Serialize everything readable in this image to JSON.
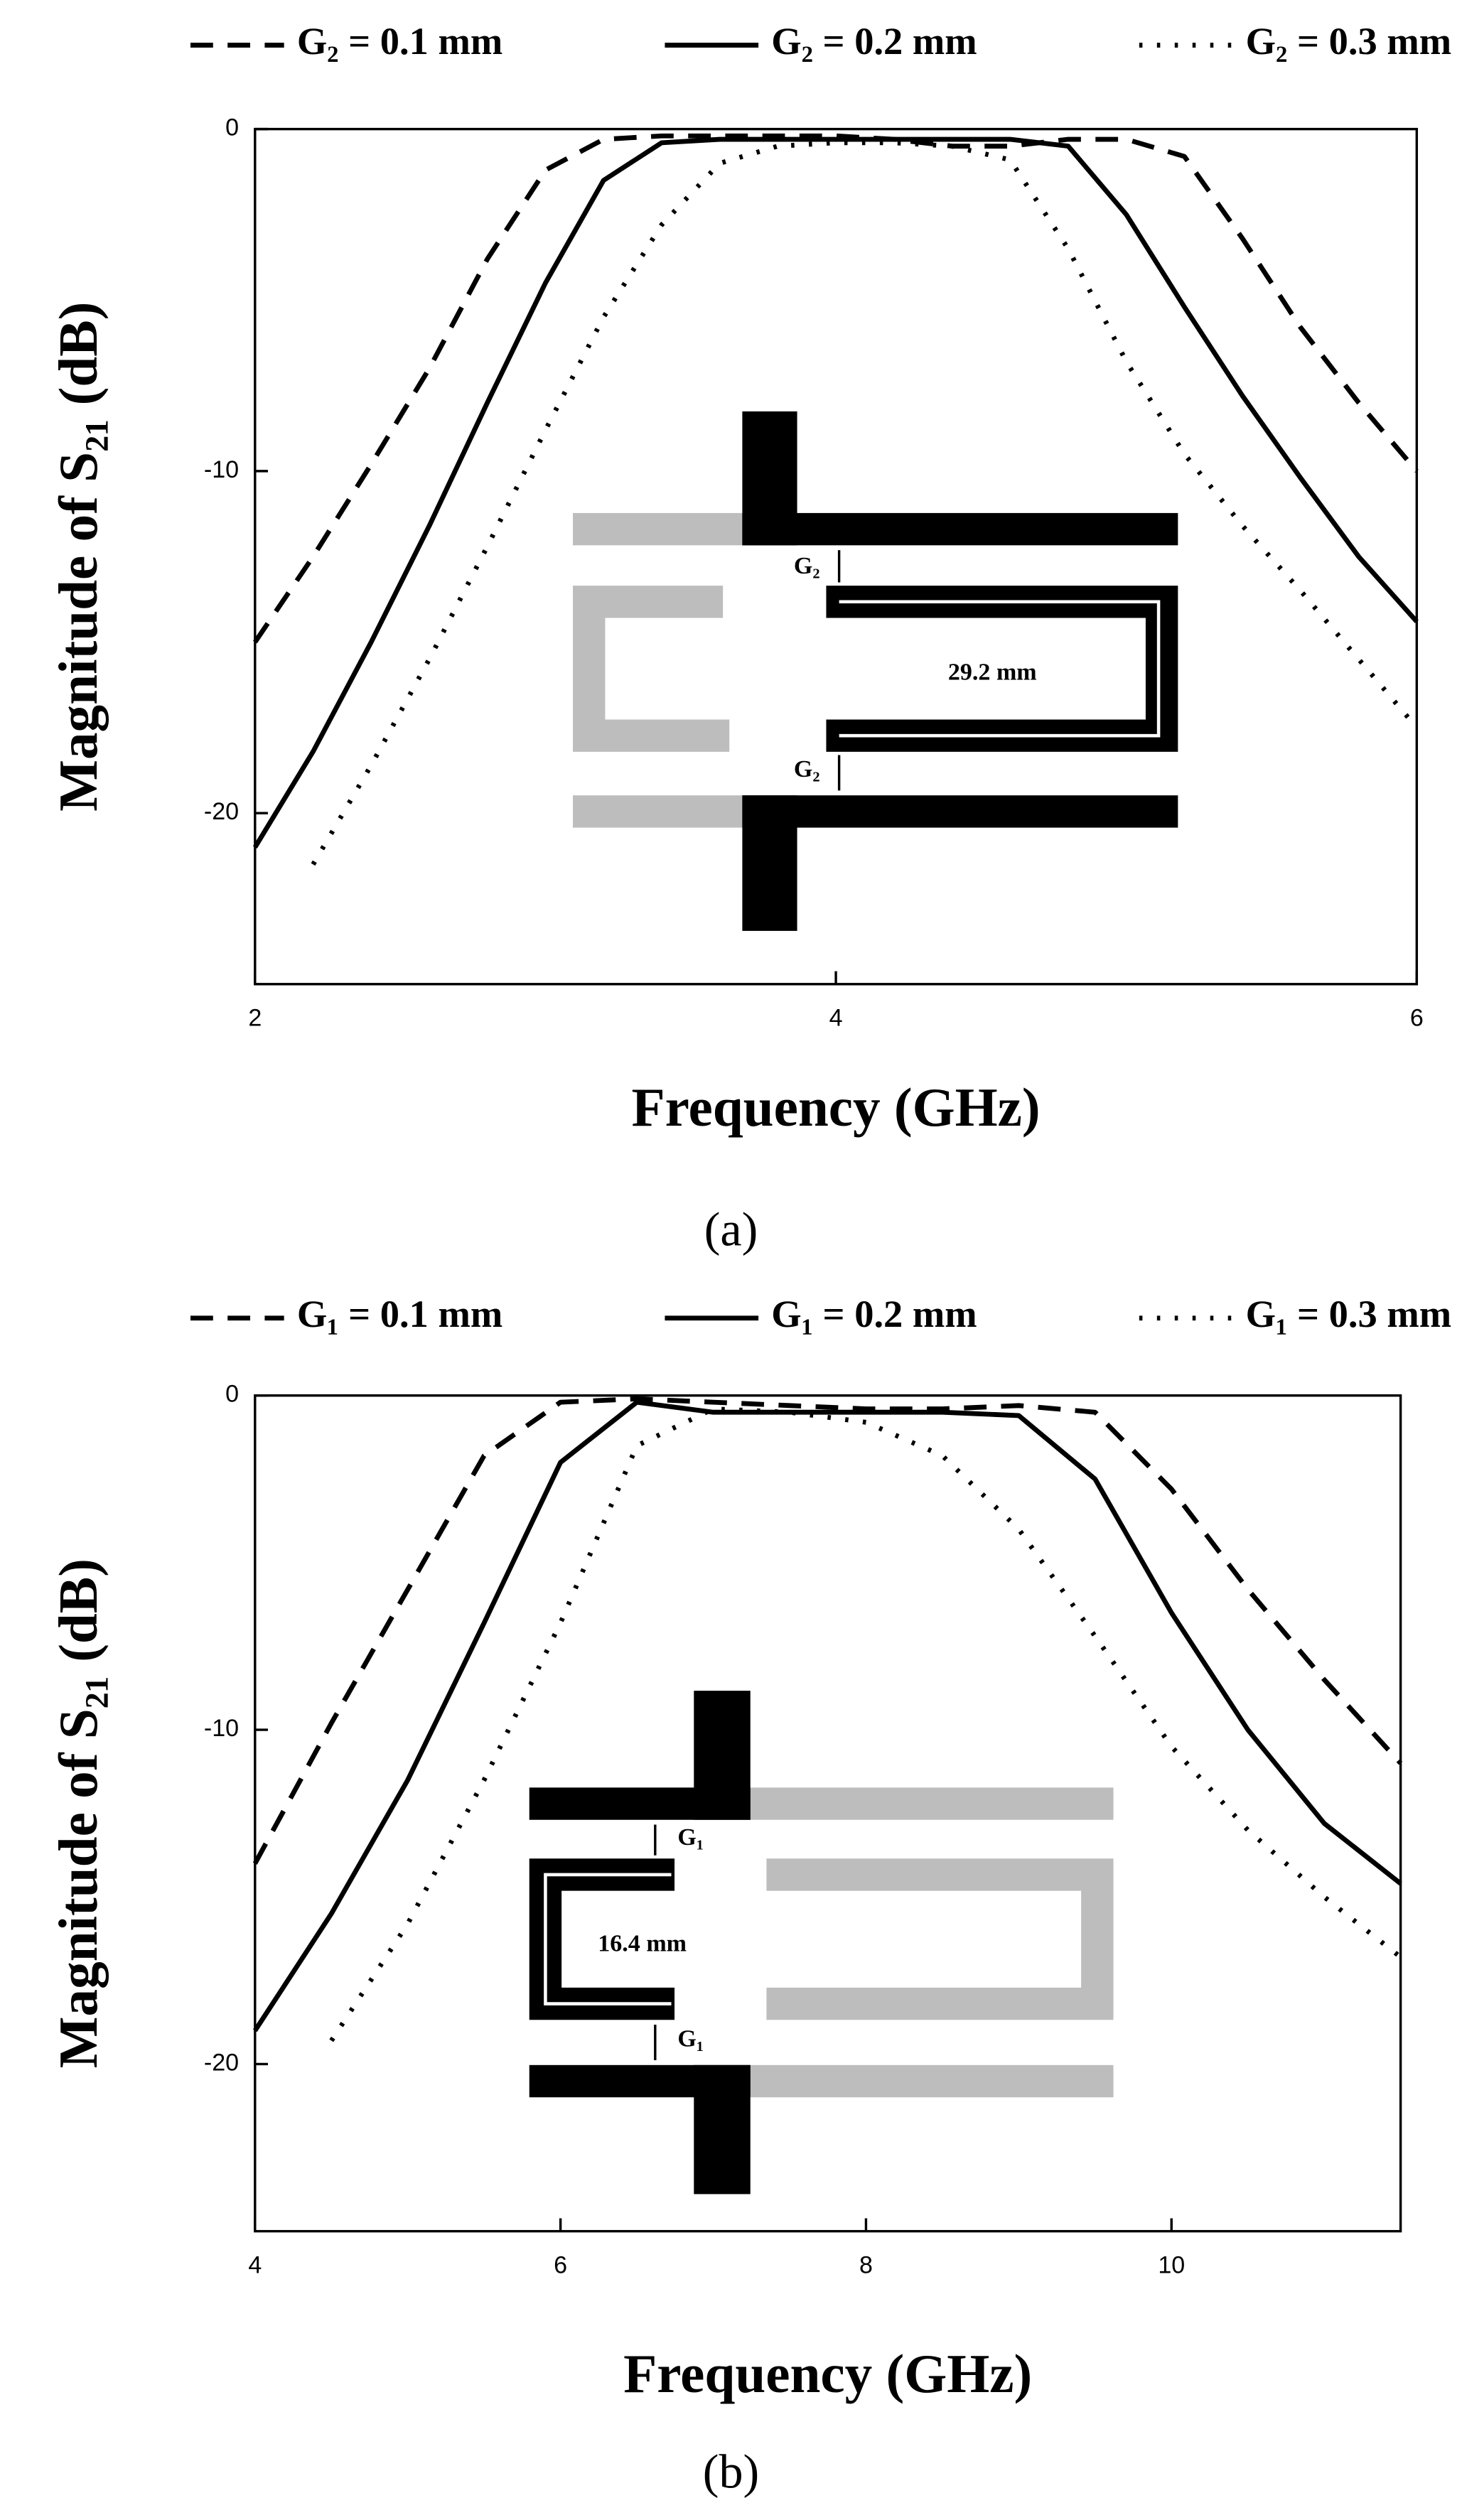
{
  "chart_data": [
    {
      "type": "line",
      "xlabel": "Frequency (GHz)",
      "ylabel": "Magnitude of S₂₁ (dB)",
      "caption": "(a)",
      "x": [
        2,
        2.2,
        2.4,
        2.6,
        2.8,
        3.0,
        3.2,
        3.4,
        3.6,
        3.8,
        4.0,
        4.2,
        4.4,
        4.6,
        4.8,
        5.0,
        5.2,
        5.4,
        5.6,
        5.8,
        6.0
      ],
      "series": [
        {
          "name": "G₂ = 0.1 mm",
          "color": "#000000",
          "style": "dashed",
          "values": [
            -15,
            -12.5,
            -9.8,
            -7,
            -3.8,
            -1.2,
            -0.3,
            -0.2,
            -0.2,
            -0.2,
            -0.2,
            -0.3,
            -0.5,
            -0.5,
            -0.3,
            -0.3,
            -0.8,
            -3.2,
            -5.8,
            -8,
            -10
          ]
        },
        {
          "name": "G₂ = 0.2 mm",
          "color": "#000000",
          "style": "solid",
          "values": [
            -21,
            -18.2,
            -15,
            -11.6,
            -8,
            -4.5,
            -1.5,
            -0.4,
            -0.3,
            -0.3,
            -0.3,
            -0.3,
            -0.3,
            -0.3,
            -0.5,
            -2.5,
            -5.2,
            -7.8,
            -10.2,
            -12.5,
            -14.4
          ]
        },
        {
          "name": "G₂ = 0.3 mm",
          "color": "#000000",
          "style": "dotted",
          "values": [
            null,
            -21.5,
            -18.6,
            -15.5,
            -12.2,
            -8.8,
            -5.5,
            -2.8,
            -1,
            -0.5,
            -0.4,
            -0.4,
            -0.5,
            -0.9,
            -3.5,
            -6.8,
            -9.5,
            -11.6,
            -13.5,
            -15.5,
            -17.5
          ]
        }
      ],
      "xlim": [
        2,
        6
      ],
      "xticks": [
        2,
        4,
        6
      ],
      "ylim": [
        -25,
        0
      ],
      "yticks": [
        -20,
        -10,
        0
      ],
      "annotations": [
        "G₂",
        "29.2 mm",
        "G₂"
      ]
    },
    {
      "type": "line",
      "xlabel": "Frequency (GHz)",
      "ylabel": "Magnitude of S₂₁ (dB)",
      "caption": "(b)",
      "x": [
        4,
        4.5,
        5,
        5.5,
        6,
        6.5,
        7,
        7.5,
        8,
        8.5,
        9,
        9.5,
        10,
        10.5,
        11,
        11.5
      ],
      "series": [
        {
          "name": "G₁ = 0.1 mm",
          "color": "#000000",
          "style": "dashed",
          "values": [
            -14,
            -9.8,
            -5.8,
            -1.8,
            -0.2,
            -0.1,
            -0.2,
            -0.3,
            -0.4,
            -0.4,
            -0.3,
            -0.5,
            -2.8,
            -5.8,
            -8.5,
            -11
          ]
        },
        {
          "name": "G₁ = 0.2 mm",
          "color": "#000000",
          "style": "solid",
          "values": [
            -19,
            -15.5,
            -11.5,
            -6.8,
            -2,
            -0.2,
            -0.5,
            -0.5,
            -0.5,
            -0.5,
            -0.6,
            -2.5,
            -6.5,
            -10,
            -12.8,
            -14.6
          ]
        },
        {
          "name": "G₁ = 0.3 mm",
          "color": "#000000",
          "style": "dotted",
          "values": [
            null,
            -19.3,
            -15.8,
            -11.5,
            -6.8,
            -1.5,
            -0.4,
            -0.5,
            -0.8,
            -1.8,
            -4,
            -7.2,
            -10.5,
            -13,
            -15,
            -16.8
          ]
        }
      ],
      "xlim": [
        4,
        11.5
      ],
      "xticks": [
        4,
        6,
        8,
        10
      ],
      "ylim": [
        -25,
        0
      ],
      "yticks": [
        -20,
        -10,
        0
      ],
      "annotations": [
        "G₁",
        "16.4 mm",
        "G₁"
      ]
    }
  ]
}
